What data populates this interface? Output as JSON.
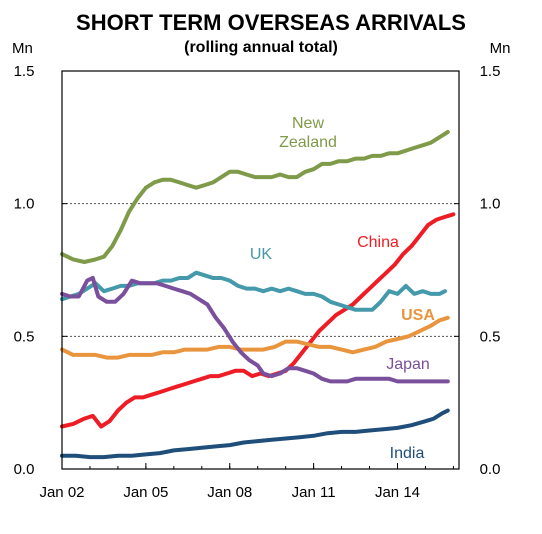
{
  "chart_data": {
    "type": "line",
    "title": "SHORT TERM OVERSEAS ARRIVALS",
    "subtitle": "(rolling annual total)",
    "unit_left": "Mn",
    "unit_right": "Mn",
    "ylim": [
      0,
      1.5
    ],
    "y_ticks": [
      {
        "value": 0.0,
        "label": "0.0"
      },
      {
        "value": 0.5,
        "label": "0.5"
      },
      {
        "value": 1.0,
        "label": "1.0"
      },
      {
        "value": 1.5,
        "label": "1.5"
      }
    ],
    "xlim": [
      2002.0,
      2016.2
    ],
    "x_ticks": [
      {
        "value": 2002,
        "label": "Jan 02"
      },
      {
        "value": 2005,
        "label": "Jan 05"
      },
      {
        "value": 2008,
        "label": "Jan 08"
      },
      {
        "value": 2011,
        "label": "Jan 11"
      },
      {
        "value": 2014,
        "label": "Jan 14"
      }
    ],
    "gridlines": [
      0.5,
      1.0
    ],
    "series": [
      {
        "name": "New Zealand",
        "color": "#7f9a48",
        "label_lines": [
          "New",
          "Zealand"
        ],
        "points": [
          [
            2002.0,
            0.81
          ],
          [
            2002.4,
            0.79
          ],
          [
            2002.8,
            0.78
          ],
          [
            2003.2,
            0.79
          ],
          [
            2003.5,
            0.8
          ],
          [
            2003.8,
            0.84
          ],
          [
            2004.1,
            0.9
          ],
          [
            2004.4,
            0.97
          ],
          [
            2004.7,
            1.02
          ],
          [
            2005.0,
            1.06
          ],
          [
            2005.3,
            1.08
          ],
          [
            2005.6,
            1.09
          ],
          [
            2005.9,
            1.09
          ],
          [
            2006.2,
            1.08
          ],
          [
            2006.5,
            1.07
          ],
          [
            2006.8,
            1.06
          ],
          [
            2007.1,
            1.07
          ],
          [
            2007.4,
            1.08
          ],
          [
            2007.7,
            1.1
          ],
          [
            2008.0,
            1.12
          ],
          [
            2008.3,
            1.12
          ],
          [
            2008.6,
            1.11
          ],
          [
            2008.9,
            1.1
          ],
          [
            2009.2,
            1.1
          ],
          [
            2009.5,
            1.1
          ],
          [
            2009.8,
            1.11
          ],
          [
            2010.1,
            1.1
          ],
          [
            2010.4,
            1.1
          ],
          [
            2010.7,
            1.12
          ],
          [
            2011.0,
            1.13
          ],
          [
            2011.3,
            1.15
          ],
          [
            2011.6,
            1.15
          ],
          [
            2011.9,
            1.16
          ],
          [
            2012.2,
            1.16
          ],
          [
            2012.5,
            1.17
          ],
          [
            2012.8,
            1.17
          ],
          [
            2013.1,
            1.18
          ],
          [
            2013.4,
            1.18
          ],
          [
            2013.7,
            1.19
          ],
          [
            2014.0,
            1.19
          ],
          [
            2014.3,
            1.2
          ],
          [
            2014.6,
            1.21
          ],
          [
            2014.9,
            1.22
          ],
          [
            2015.2,
            1.23
          ],
          [
            2015.5,
            1.25
          ],
          [
            2015.8,
            1.27
          ]
        ]
      },
      {
        "name": "China",
        "color": "#ee1c25",
        "label_lines": [
          "China"
        ],
        "points": [
          [
            2002.0,
            0.16
          ],
          [
            2002.4,
            0.17
          ],
          [
            2002.8,
            0.19
          ],
          [
            2003.1,
            0.2
          ],
          [
            2003.4,
            0.16
          ],
          [
            2003.7,
            0.18
          ],
          [
            2004.0,
            0.22
          ],
          [
            2004.3,
            0.25
          ],
          [
            2004.6,
            0.27
          ],
          [
            2004.9,
            0.27
          ],
          [
            2005.2,
            0.28
          ],
          [
            2005.5,
            0.29
          ],
          [
            2005.8,
            0.3
          ],
          [
            2006.1,
            0.31
          ],
          [
            2006.4,
            0.32
          ],
          [
            2006.7,
            0.33
          ],
          [
            2007.0,
            0.34
          ],
          [
            2007.3,
            0.35
          ],
          [
            2007.6,
            0.35
          ],
          [
            2007.9,
            0.36
          ],
          [
            2008.2,
            0.37
          ],
          [
            2008.5,
            0.37
          ],
          [
            2008.8,
            0.35
          ],
          [
            2009.1,
            0.36
          ],
          [
            2009.4,
            0.35
          ],
          [
            2009.7,
            0.36
          ],
          [
            2010.0,
            0.37
          ],
          [
            2010.3,
            0.4
          ],
          [
            2010.6,
            0.44
          ],
          [
            2010.9,
            0.48
          ],
          [
            2011.2,
            0.52
          ],
          [
            2011.5,
            0.55
          ],
          [
            2011.8,
            0.58
          ],
          [
            2012.1,
            0.6
          ],
          [
            2012.4,
            0.62
          ],
          [
            2012.7,
            0.65
          ],
          [
            2013.0,
            0.68
          ],
          [
            2013.3,
            0.71
          ],
          [
            2013.6,
            0.74
          ],
          [
            2013.9,
            0.77
          ],
          [
            2014.2,
            0.81
          ],
          [
            2014.5,
            0.84
          ],
          [
            2014.8,
            0.88
          ],
          [
            2015.1,
            0.92
          ],
          [
            2015.4,
            0.94
          ],
          [
            2015.7,
            0.95
          ],
          [
            2016.0,
            0.96
          ]
        ]
      },
      {
        "name": "UK",
        "color": "#4499aa",
        "label_lines": [
          "UK"
        ],
        "points": [
          [
            2002.0,
            0.64
          ],
          [
            2002.3,
            0.65
          ],
          [
            2002.6,
            0.66
          ],
          [
            2002.9,
            0.68
          ],
          [
            2003.2,
            0.7
          ],
          [
            2003.5,
            0.67
          ],
          [
            2003.8,
            0.68
          ],
          [
            2004.1,
            0.69
          ],
          [
            2004.4,
            0.69
          ],
          [
            2004.7,
            0.7
          ],
          [
            2005.0,
            0.7
          ],
          [
            2005.3,
            0.7
          ],
          [
            2005.6,
            0.71
          ],
          [
            2005.9,
            0.71
          ],
          [
            2006.2,
            0.72
          ],
          [
            2006.5,
            0.72
          ],
          [
            2006.8,
            0.74
          ],
          [
            2007.1,
            0.73
          ],
          [
            2007.4,
            0.72
          ],
          [
            2007.7,
            0.72
          ],
          [
            2008.0,
            0.71
          ],
          [
            2008.3,
            0.69
          ],
          [
            2008.6,
            0.68
          ],
          [
            2008.9,
            0.68
          ],
          [
            2009.2,
            0.67
          ],
          [
            2009.5,
            0.68
          ],
          [
            2009.8,
            0.67
          ],
          [
            2010.1,
            0.68
          ],
          [
            2010.4,
            0.67
          ],
          [
            2010.7,
            0.66
          ],
          [
            2011.0,
            0.66
          ],
          [
            2011.3,
            0.65
          ],
          [
            2011.6,
            0.63
          ],
          [
            2011.9,
            0.62
          ],
          [
            2012.2,
            0.61
          ],
          [
            2012.5,
            0.6
          ],
          [
            2012.8,
            0.6
          ],
          [
            2013.1,
            0.6
          ],
          [
            2013.4,
            0.63
          ],
          [
            2013.7,
            0.67
          ],
          [
            2014.0,
            0.66
          ],
          [
            2014.3,
            0.69
          ],
          [
            2014.6,
            0.66
          ],
          [
            2014.9,
            0.67
          ],
          [
            2015.2,
            0.66
          ],
          [
            2015.5,
            0.66
          ],
          [
            2015.7,
            0.67
          ]
        ]
      },
      {
        "name": "USA",
        "color": "#e8953e",
        "label_lines": [
          "USA"
        ],
        "points": [
          [
            2002.0,
            0.45
          ],
          [
            2002.4,
            0.43
          ],
          [
            2002.8,
            0.43
          ],
          [
            2003.2,
            0.43
          ],
          [
            2003.6,
            0.42
          ],
          [
            2004.0,
            0.42
          ],
          [
            2004.4,
            0.43
          ],
          [
            2004.8,
            0.43
          ],
          [
            2005.2,
            0.43
          ],
          [
            2005.6,
            0.44
          ],
          [
            2006.0,
            0.44
          ],
          [
            2006.4,
            0.45
          ],
          [
            2006.8,
            0.45
          ],
          [
            2007.2,
            0.45
          ],
          [
            2007.6,
            0.46
          ],
          [
            2008.0,
            0.46
          ],
          [
            2008.4,
            0.45
          ],
          [
            2008.8,
            0.45
          ],
          [
            2009.2,
            0.45
          ],
          [
            2009.6,
            0.46
          ],
          [
            2010.0,
            0.48
          ],
          [
            2010.4,
            0.48
          ],
          [
            2010.8,
            0.47
          ],
          [
            2011.2,
            0.46
          ],
          [
            2011.6,
            0.46
          ],
          [
            2012.0,
            0.45
          ],
          [
            2012.4,
            0.44
          ],
          [
            2012.8,
            0.45
          ],
          [
            2013.2,
            0.46
          ],
          [
            2013.6,
            0.48
          ],
          [
            2014.0,
            0.49
          ],
          [
            2014.4,
            0.5
          ],
          [
            2014.8,
            0.52
          ],
          [
            2015.2,
            0.54
          ],
          [
            2015.5,
            0.56
          ],
          [
            2015.8,
            0.57
          ]
        ]
      },
      {
        "name": "Japan",
        "color": "#7a4f9c",
        "label_lines": [
          "Japan"
        ],
        "points": [
          [
            2002.0,
            0.66
          ],
          [
            2002.3,
            0.65
          ],
          [
            2002.6,
            0.65
          ],
          [
            2002.9,
            0.71
          ],
          [
            2003.1,
            0.72
          ],
          [
            2003.3,
            0.65
          ],
          [
            2003.6,
            0.63
          ],
          [
            2003.9,
            0.63
          ],
          [
            2004.2,
            0.66
          ],
          [
            2004.5,
            0.71
          ],
          [
            2004.8,
            0.7
          ],
          [
            2005.1,
            0.7
          ],
          [
            2005.4,
            0.7
          ],
          [
            2005.7,
            0.69
          ],
          [
            2006.0,
            0.68
          ],
          [
            2006.3,
            0.67
          ],
          [
            2006.6,
            0.66
          ],
          [
            2006.9,
            0.64
          ],
          [
            2007.2,
            0.62
          ],
          [
            2007.5,
            0.57
          ],
          [
            2007.8,
            0.53
          ],
          [
            2008.1,
            0.48
          ],
          [
            2008.4,
            0.44
          ],
          [
            2008.7,
            0.41
          ],
          [
            2009.0,
            0.39
          ],
          [
            2009.2,
            0.36
          ],
          [
            2009.5,
            0.35
          ],
          [
            2009.8,
            0.36
          ],
          [
            2010.1,
            0.38
          ],
          [
            2010.4,
            0.38
          ],
          [
            2010.7,
            0.37
          ],
          [
            2011.0,
            0.36
          ],
          [
            2011.3,
            0.34
          ],
          [
            2011.6,
            0.33
          ],
          [
            2011.9,
            0.33
          ],
          [
            2012.2,
            0.33
          ],
          [
            2012.5,
            0.34
          ],
          [
            2012.8,
            0.34
          ],
          [
            2013.1,
            0.34
          ],
          [
            2013.4,
            0.34
          ],
          [
            2013.7,
            0.34
          ],
          [
            2014.0,
            0.33
          ],
          [
            2014.3,
            0.33
          ],
          [
            2014.6,
            0.33
          ],
          [
            2014.9,
            0.33
          ],
          [
            2015.2,
            0.33
          ],
          [
            2015.5,
            0.33
          ],
          [
            2015.8,
            0.33
          ]
        ]
      },
      {
        "name": "India",
        "color": "#1f4e7a",
        "label_lines": [
          "India"
        ],
        "points": [
          [
            2002.0,
            0.05
          ],
          [
            2002.5,
            0.05
          ],
          [
            2003.0,
            0.045
          ],
          [
            2003.5,
            0.045
          ],
          [
            2004.0,
            0.05
          ],
          [
            2004.5,
            0.05
          ],
          [
            2005.0,
            0.055
          ],
          [
            2005.5,
            0.06
          ],
          [
            2006.0,
            0.07
          ],
          [
            2006.5,
            0.075
          ],
          [
            2007.0,
            0.08
          ],
          [
            2007.5,
            0.085
          ],
          [
            2008.0,
            0.09
          ],
          [
            2008.5,
            0.1
          ],
          [
            2009.0,
            0.105
          ],
          [
            2009.5,
            0.11
          ],
          [
            2010.0,
            0.115
          ],
          [
            2010.5,
            0.12
          ],
          [
            2011.0,
            0.125
          ],
          [
            2011.5,
            0.135
          ],
          [
            2012.0,
            0.14
          ],
          [
            2012.5,
            0.14
          ],
          [
            2013.0,
            0.145
          ],
          [
            2013.5,
            0.15
          ],
          [
            2014.0,
            0.155
          ],
          [
            2014.5,
            0.165
          ],
          [
            2015.0,
            0.18
          ],
          [
            2015.3,
            0.19
          ],
          [
            2015.6,
            0.21
          ],
          [
            2015.8,
            0.22
          ]
        ]
      }
    ]
  }
}
